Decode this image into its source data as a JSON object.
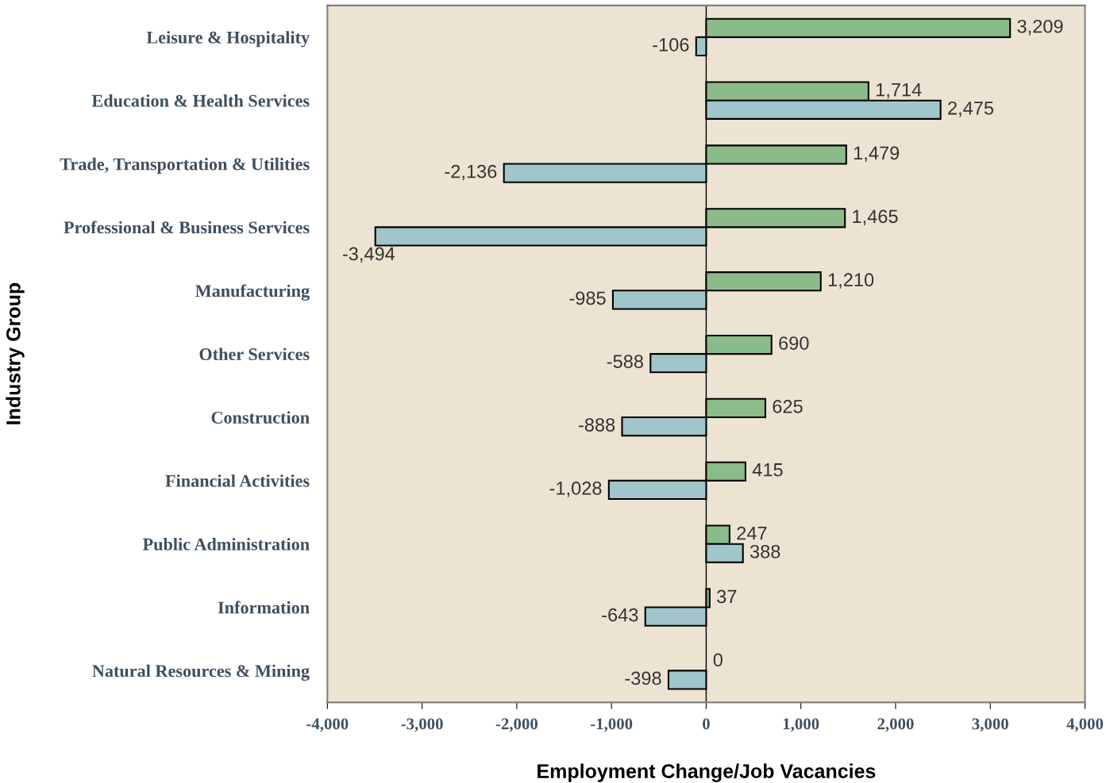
{
  "chart_data": {
    "type": "bar",
    "orientation": "horizontal",
    "xlabel": "Employment Change/Job Vacancies",
    "ylabel": "Industry Group",
    "categories": [
      "Leisure & Hospitality",
      "Education & Health Services",
      "Trade, Transportation & Utilities",
      "Professional & Business Services",
      "Manufacturing",
      "Other Services",
      "Construction",
      "Financial Activities",
      "Public Administration",
      "Information",
      "Natural Resources & Mining"
    ],
    "series": [
      {
        "color": "#8cbb8a",
        "values": [
          3209,
          1714,
          1479,
          1465,
          1210,
          690,
          625,
          415,
          247,
          37,
          0
        ],
        "value_labels": [
          "3,209",
          "1,714",
          "1,479",
          "1,465",
          "1,210",
          "690",
          "625",
          "415",
          "247",
          "37",
          "0"
        ]
      },
      {
        "color": "#a0c6cb",
        "values": [
          -106,
          2475,
          -2136,
          -3494,
          -985,
          -588,
          -888,
          -1028,
          388,
          -643,
          -398
        ],
        "value_labels": [
          "-106",
          "2,475",
          "-2,136",
          "-3,494",
          "-985",
          "-588",
          "-888",
          "-1,028",
          "388",
          "-643",
          "-398"
        ]
      }
    ],
    "xlim": [
      -4000,
      4000
    ],
    "xticks": [
      {
        "value": -4000,
        "label": "-4,000"
      },
      {
        "value": -3000,
        "label": "-3,000"
      },
      {
        "value": -2000,
        "label": "-2,000"
      },
      {
        "value": -1000,
        "label": "-1,000"
      },
      0,
      {
        "value": 1000,
        "label": "1,000"
      },
      {
        "value": 2000,
        "label": "2,000"
      },
      {
        "value": 3000,
        "label": "3,000"
      },
      {
        "value": 4000,
        "label": "4,000"
      }
    ],
    "ref_lines": [
      {
        "axis": "x",
        "value": 0,
        "color": "#000000"
      }
    ],
    "grid": false,
    "legend": false
  }
}
